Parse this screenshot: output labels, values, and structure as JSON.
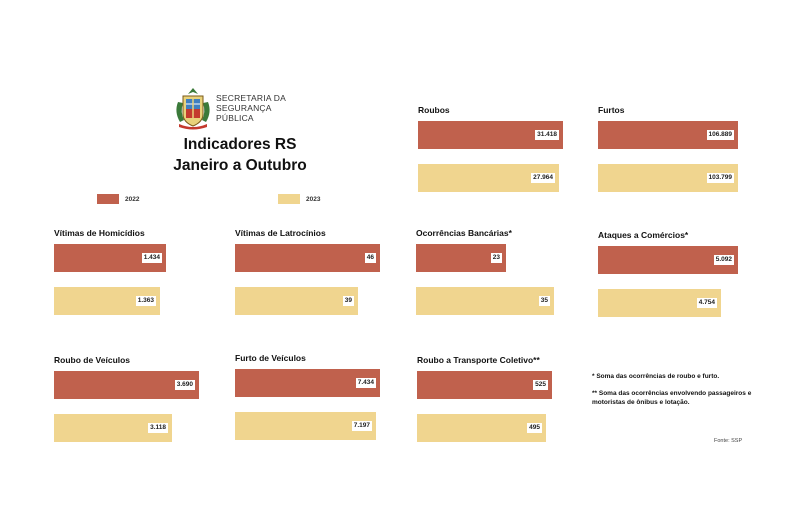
{
  "header": {
    "org_line1": "SECRETARIA DA",
    "org_line2": "SEGURANÇA",
    "org_line3": "PÚBLICA",
    "title_line1": "Indicadores RS",
    "title_line2": "Janeiro a Outubro"
  },
  "legend": [
    {
      "label": "2022",
      "color": "#c0614d"
    },
    {
      "label": "2023",
      "color": "#f0d58f"
    }
  ],
  "chart_data": [
    {
      "type": "bar",
      "title": "Roubos",
      "categories": [
        "2022",
        "2023"
      ],
      "values": [
        31418
      ],
      "labels": [
        "31.418"
      ],
      "values_2023": [
        27964
      ],
      "labels_2023": [
        "27.964"
      ]
    },
    {
      "type": "bar",
      "title": "Furtos",
      "categories": [
        "2022",
        "2023"
      ],
      "values": [
        106889
      ],
      "labels": [
        "106.889"
      ],
      "values_2023": [
        103799
      ],
      "labels_2023": [
        "103.799"
      ]
    },
    {
      "type": "bar",
      "title": "Vítimas de Homicídios",
      "categories": [
        "2022",
        "2023"
      ],
      "values": [
        1434
      ],
      "labels": [
        "1.434"
      ],
      "values_2023": [
        1363
      ],
      "labels_2023": [
        "1.363"
      ]
    },
    {
      "type": "bar",
      "title": "Vítimas de Latrocínios",
      "categories": [
        "2022",
        "2023"
      ],
      "values": [
        46
      ],
      "labels": [
        "46"
      ],
      "values_2023": [
        39
      ],
      "labels_2023": [
        "39"
      ]
    },
    {
      "type": "bar",
      "title": "Ocorrências Bancárias*",
      "categories": [
        "2022",
        "2023"
      ],
      "values": [
        23
      ],
      "labels": [
        "23"
      ],
      "values_2023": [
        35
      ],
      "labels_2023": [
        "35"
      ]
    },
    {
      "type": "bar",
      "title": "Ataques a Comércios*",
      "categories": [
        "2022",
        "2023"
      ],
      "values": [
        5092
      ],
      "labels": [
        "5.092"
      ],
      "values_2023": [
        4754
      ],
      "labels_2023": [
        "4.754"
      ]
    },
    {
      "type": "bar",
      "title": "Roubo de Veículos",
      "categories": [
        "2022",
        "2023"
      ],
      "values": [
        3690
      ],
      "labels": [
        "3.690"
      ],
      "values_2023": [
        3118
      ],
      "labels_2023": [
        "3.118"
      ]
    },
    {
      "type": "bar",
      "title": "Furto de Veículos",
      "categories": [
        "2022",
        "2023"
      ],
      "values": [
        7434
      ],
      "labels": [
        "7.434"
      ],
      "values_2023": [
        7197
      ],
      "labels_2023": [
        "7.197"
      ]
    },
    {
      "type": "bar",
      "title": "Roubo a Transporte Coletivo**",
      "categories": [
        "2022",
        "2023"
      ],
      "values": [
        525
      ],
      "labels": [
        "525"
      ],
      "values_2023": [
        495
      ],
      "labels_2023": [
        "495"
      ]
    }
  ],
  "notes": {
    "note1": "* Soma das ocorrências de roubo e furto.",
    "note2_line1": "** Soma das ocorrências envolvendo passageiros e",
    "note2_line2": "motoristas de ônibus e lotação.",
    "source": "Fonte: SSP"
  },
  "colors": {
    "bar_2022": "#c0614d",
    "bar_2023": "#f0d58f"
  }
}
